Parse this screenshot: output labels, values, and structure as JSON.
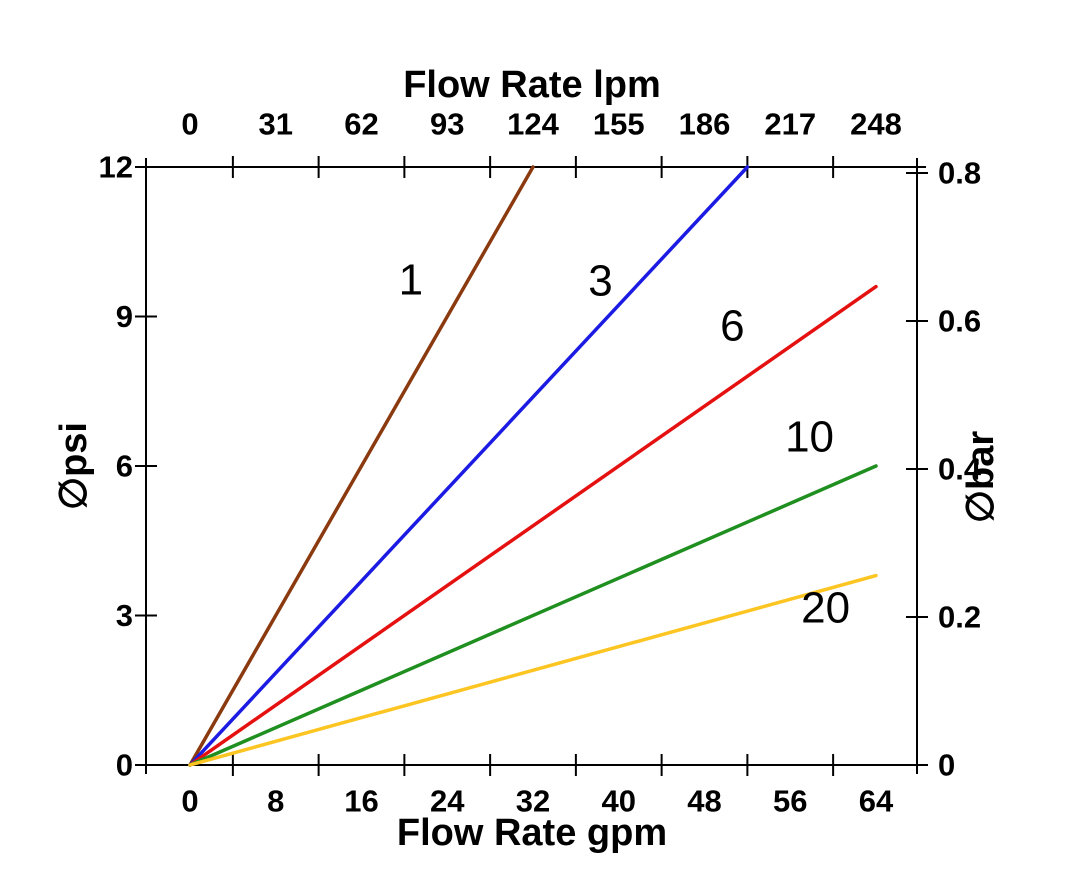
{
  "chart_data": {
    "type": "line",
    "top_axis": {
      "label": "Flow Rate lpm",
      "ticks": [
        "0",
        "31",
        "62",
        "93",
        "124",
        "155",
        "186",
        "217",
        "248"
      ]
    },
    "bottom_axis": {
      "label": "Flow Rate gpm",
      "ticks": [
        0,
        8,
        16,
        24,
        32,
        40,
        48,
        56,
        64
      ],
      "range": [
        0,
        64
      ]
    },
    "left_axis": {
      "label": "∅psi",
      "ticks": [
        0,
        3,
        6,
        9,
        12
      ],
      "range": [
        0,
        12
      ]
    },
    "right_axis": {
      "label": "∅bar",
      "ticks": [
        "0",
        "0.2",
        "0.4",
        "0.6",
        "0.8"
      ],
      "range": [
        0,
        0.8
      ],
      "psi_per_bar": 14.85
    },
    "grid": false,
    "legend": "inline-line-labels",
    "axis_color": "#000000",
    "text_color": "#000000",
    "series": [
      {
        "name": "1",
        "color": "#8B3A0F",
        "points_gpm_psi": [
          [
            0,
            0
          ],
          [
            32,
            12
          ]
        ],
        "label_at_gpm_psi": [
          20.6,
          9.73
        ]
      },
      {
        "name": "3",
        "color": "#1B1BE3",
        "points_gpm_psi": [
          [
            0,
            0
          ],
          [
            52,
            12
          ]
        ],
        "label_at_gpm_psi": [
          38.3,
          9.71
        ]
      },
      {
        "name": "6",
        "color": "#E51111",
        "points_gpm_psi": [
          [
            0,
            0
          ],
          [
            64,
            9.6
          ]
        ],
        "label_at_gpm_psi": [
          50.6,
          8.81
        ]
      },
      {
        "name": "10",
        "color": "#1F8F1F",
        "points_gpm_psi": [
          [
            0,
            0
          ],
          [
            64,
            6.0
          ]
        ],
        "label_at_gpm_psi": [
          57.8,
          6.58
        ]
      },
      {
        "name": "20",
        "color": "#FCC521",
        "points_gpm_psi": [
          [
            0,
            0
          ],
          [
            64,
            3.8
          ]
        ],
        "label_at_gpm_psi": [
          59.3,
          3.15
        ]
      }
    ]
  }
}
